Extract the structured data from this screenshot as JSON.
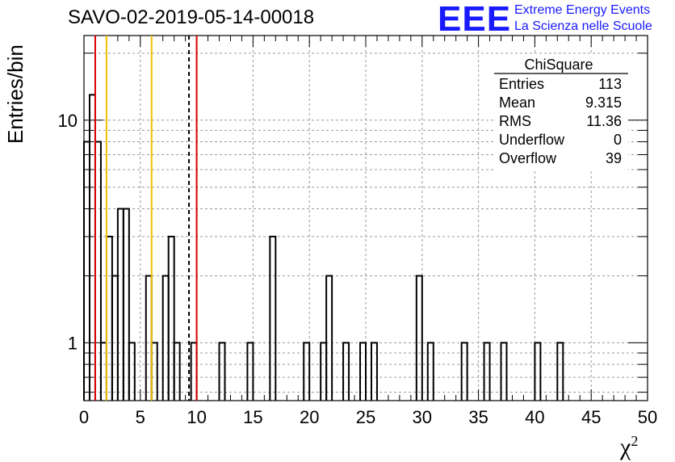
{
  "header": {
    "title": "SAVO-02-2019-05-14-00018",
    "logo_text": "EEE",
    "logo_line1": "Extreme Energy Events",
    "logo_line2": "La Scienza nelle Scuole"
  },
  "colors": {
    "red": "#dd0000",
    "yellow": "#f2c200",
    "black": "#000000",
    "grid": "#9a9a9a",
    "logo": "#1a1aff"
  },
  "chart_data": {
    "type": "bar",
    "subtype": "step-histogram",
    "xlabel": "χ",
    "xlabel_sup": "2",
    "ylabel": "Entries/bin",
    "xlim": [
      0,
      50
    ],
    "ylim": [
      0.55,
      24
    ],
    "yscale": "log",
    "grid": true,
    "x_ticks": [
      "0",
      "5",
      "10",
      "15",
      "20",
      "25",
      "30",
      "35",
      "40",
      "45",
      "50"
    ],
    "y_ticks": [
      "1",
      "10"
    ],
    "bin_width": 0.5,
    "bins": [
      {
        "x": 0.0,
        "v": 8
      },
      {
        "x": 0.5,
        "v": 13
      },
      {
        "x": 1.0,
        "v": 8
      },
      {
        "x": 1.5,
        "v": 1
      },
      {
        "x": 2.0,
        "v": 3
      },
      {
        "x": 2.5,
        "v": 2
      },
      {
        "x": 3.0,
        "v": 4
      },
      {
        "x": 3.5,
        "v": 4
      },
      {
        "x": 4.0,
        "v": 1
      },
      {
        "x": 5.5,
        "v": 2
      },
      {
        "x": 6.0,
        "v": 1
      },
      {
        "x": 7.0,
        "v": 2
      },
      {
        "x": 7.5,
        "v": 3
      },
      {
        "x": 8.0,
        "v": 1
      },
      {
        "x": 9.5,
        "v": 1
      },
      {
        "x": 12.0,
        "v": 1
      },
      {
        "x": 14.5,
        "v": 1
      },
      {
        "x": 16.5,
        "v": 3
      },
      {
        "x": 19.5,
        "v": 1
      },
      {
        "x": 21.0,
        "v": 1
      },
      {
        "x": 21.5,
        "v": 2
      },
      {
        "x": 23.0,
        "v": 1
      },
      {
        "x": 24.5,
        "v": 1
      },
      {
        "x": 25.5,
        "v": 1
      },
      {
        "x": 29.5,
        "v": 2
      },
      {
        "x": 30.5,
        "v": 1
      },
      {
        "x": 33.5,
        "v": 1
      },
      {
        "x": 35.5,
        "v": 1
      },
      {
        "x": 37.0,
        "v": 1
      },
      {
        "x": 40.0,
        "v": 1
      },
      {
        "x": 42.0,
        "v": 1
      }
    ],
    "vlines": [
      {
        "x": 1.0,
        "color": "red",
        "style": "solid"
      },
      {
        "x": 2.0,
        "color": "yellow",
        "style": "solid"
      },
      {
        "x": 6.0,
        "color": "yellow",
        "style": "solid"
      },
      {
        "x": 9.315,
        "color": "black",
        "style": "dashed"
      },
      {
        "x": 10.0,
        "color": "red",
        "style": "solid"
      }
    ],
    "stats": {
      "title": "ChiSquare",
      "rows": [
        {
          "label": "Entries",
          "value": "113"
        },
        {
          "label": "Mean",
          "value": "9.315"
        },
        {
          "label": "RMS",
          "value": "11.36"
        },
        {
          "label": "Underflow",
          "value": "0"
        },
        {
          "label": "Overflow",
          "value": "39"
        }
      ]
    }
  }
}
